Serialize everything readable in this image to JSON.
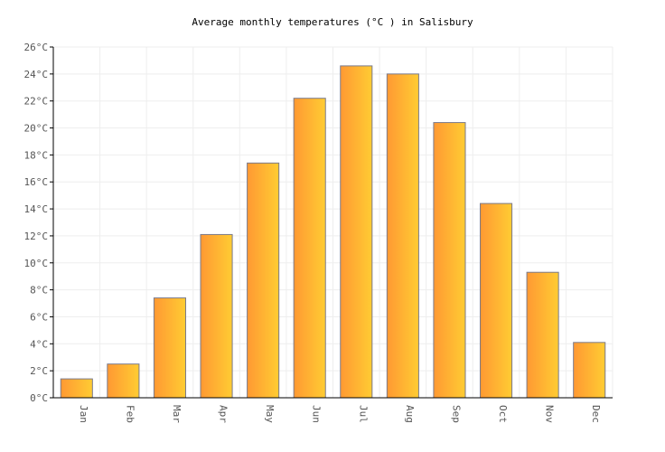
{
  "chart_data": {
    "type": "bar",
    "title": "Average monthly temperatures (°C ) in Salisbury",
    "categories": [
      "Jan",
      "Feb",
      "Mar",
      "Apr",
      "May",
      "Jun",
      "Jul",
      "Aug",
      "Sep",
      "Oct",
      "Nov",
      "Dec"
    ],
    "values": [
      1.4,
      2.5,
      7.4,
      12.1,
      17.4,
      22.2,
      24.6,
      24.0,
      20.4,
      14.4,
      9.3,
      4.1
    ],
    "ylim": [
      0,
      26
    ],
    "ytick_step": 2,
    "ytick_unit": "°C",
    "grid": true,
    "colors": {
      "bar_left": "#ff9933",
      "bar_right": "#ffcc33",
      "bar_stroke": "#7a7a8a",
      "grid": "#eeeeee",
      "axis": "#000000"
    }
  }
}
